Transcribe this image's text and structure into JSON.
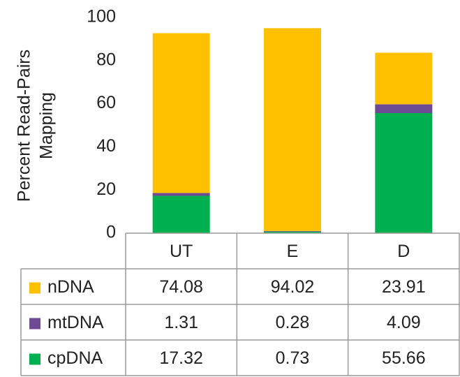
{
  "chart_data": {
    "type": "stacked_bar",
    "ylabel": [
      "Percent Read-Pairs",
      "Mapping"
    ],
    "categories": [
      "UT",
      "E",
      "D"
    ],
    "series": [
      {
        "name": "nDNA",
        "color": "#ffc000",
        "values": [
          74.08,
          94.02,
          23.91
        ]
      },
      {
        "name": "mtDNA",
        "color": "#6e4a94",
        "values": [
          1.31,
          0.28,
          4.09
        ]
      },
      {
        "name": "cpDNA",
        "color": "#00b050",
        "values": [
          17.32,
          0.73,
          55.66
        ]
      }
    ],
    "stack_order": [
      "cpDNA",
      "mtDNA",
      "nDNA"
    ],
    "ylim": [
      0,
      100
    ],
    "yticks": [
      0,
      20,
      40,
      60,
      80,
      100
    ],
    "grid": false
  }
}
